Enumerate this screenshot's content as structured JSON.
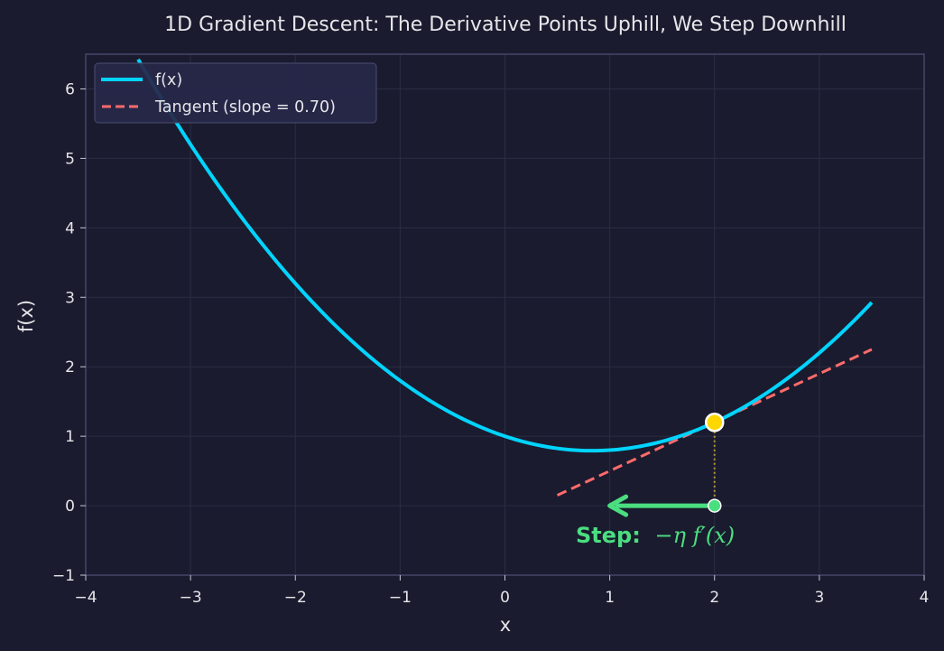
{
  "chart_data": {
    "type": "line",
    "title": "1D Gradient Descent: The Derivative Points Uphill, We Step Downhill",
    "xlabel": "x",
    "ylabel": "f(x)",
    "xlim": [
      -4,
      4
    ],
    "ylim": [
      -1,
      6.5
    ],
    "xticks": [
      -4,
      -3,
      -2,
      -1,
      0,
      1,
      2,
      3,
      4
    ],
    "yticks": [
      -1,
      0,
      1,
      2,
      3,
      4,
      5,
      6
    ],
    "xtick_labels": [
      "−4",
      "−3",
      "−2",
      "−1",
      "0",
      "1",
      "2",
      "3",
      "4"
    ],
    "ytick_labels": [
      "−1",
      "0",
      "1",
      "2",
      "3",
      "4",
      "5",
      "6"
    ],
    "grid": true,
    "legend_position": "upper left",
    "series": [
      {
        "name": "f(x)",
        "kind": "curve",
        "formula": "0.3x^2 - 0.5x + 1",
        "color": "#00d4ff",
        "x": [
          -3.5,
          -3.0,
          -2.5,
          -2.0,
          -1.5,
          -1.0,
          -0.5,
          0.0,
          0.5,
          0.833,
          1.0,
          1.5,
          2.0,
          2.5,
          3.0,
          3.5
        ],
        "y": [
          6.425,
          5.2,
          4.125,
          3.2,
          2.425,
          1.8,
          1.325,
          1.0,
          0.825,
          0.792,
          0.8,
          0.925,
          1.2,
          1.625,
          2.2,
          2.925
        ]
      },
      {
        "name": "Tangent (slope = 0.70)",
        "kind": "dashed-line",
        "color": "#ff6b6b",
        "x": [
          0.5,
          3.5
        ],
        "y": [
          0.15,
          2.25
        ]
      }
    ],
    "annotations": {
      "current_point": {
        "x": 2.0,
        "y": 1.2,
        "color": "#ffd700"
      },
      "projection_point": {
        "x": 2.0,
        "y": 0.0,
        "color": "#4ade80"
      },
      "step_arrow": {
        "from_x": 2.0,
        "to_x": 1.0,
        "y": 0.0,
        "color": "#4ade80"
      },
      "step_label": {
        "bold": "Step:",
        "math": "−η f′(x)",
        "x": 1.5,
        "y": -0.45,
        "color": "#4ade80"
      }
    },
    "legend": [
      "f(x)",
      "Tangent (slope = 0.70)"
    ]
  },
  "colors": {
    "background": "#1a1b2e",
    "grid": "#2a2c44",
    "spine": "#44466a",
    "text": "#e6e6ea",
    "curve": "#00d4ff",
    "tangent": "#ff6b6b",
    "point": "#ffd700",
    "step": "#4ade80"
  }
}
